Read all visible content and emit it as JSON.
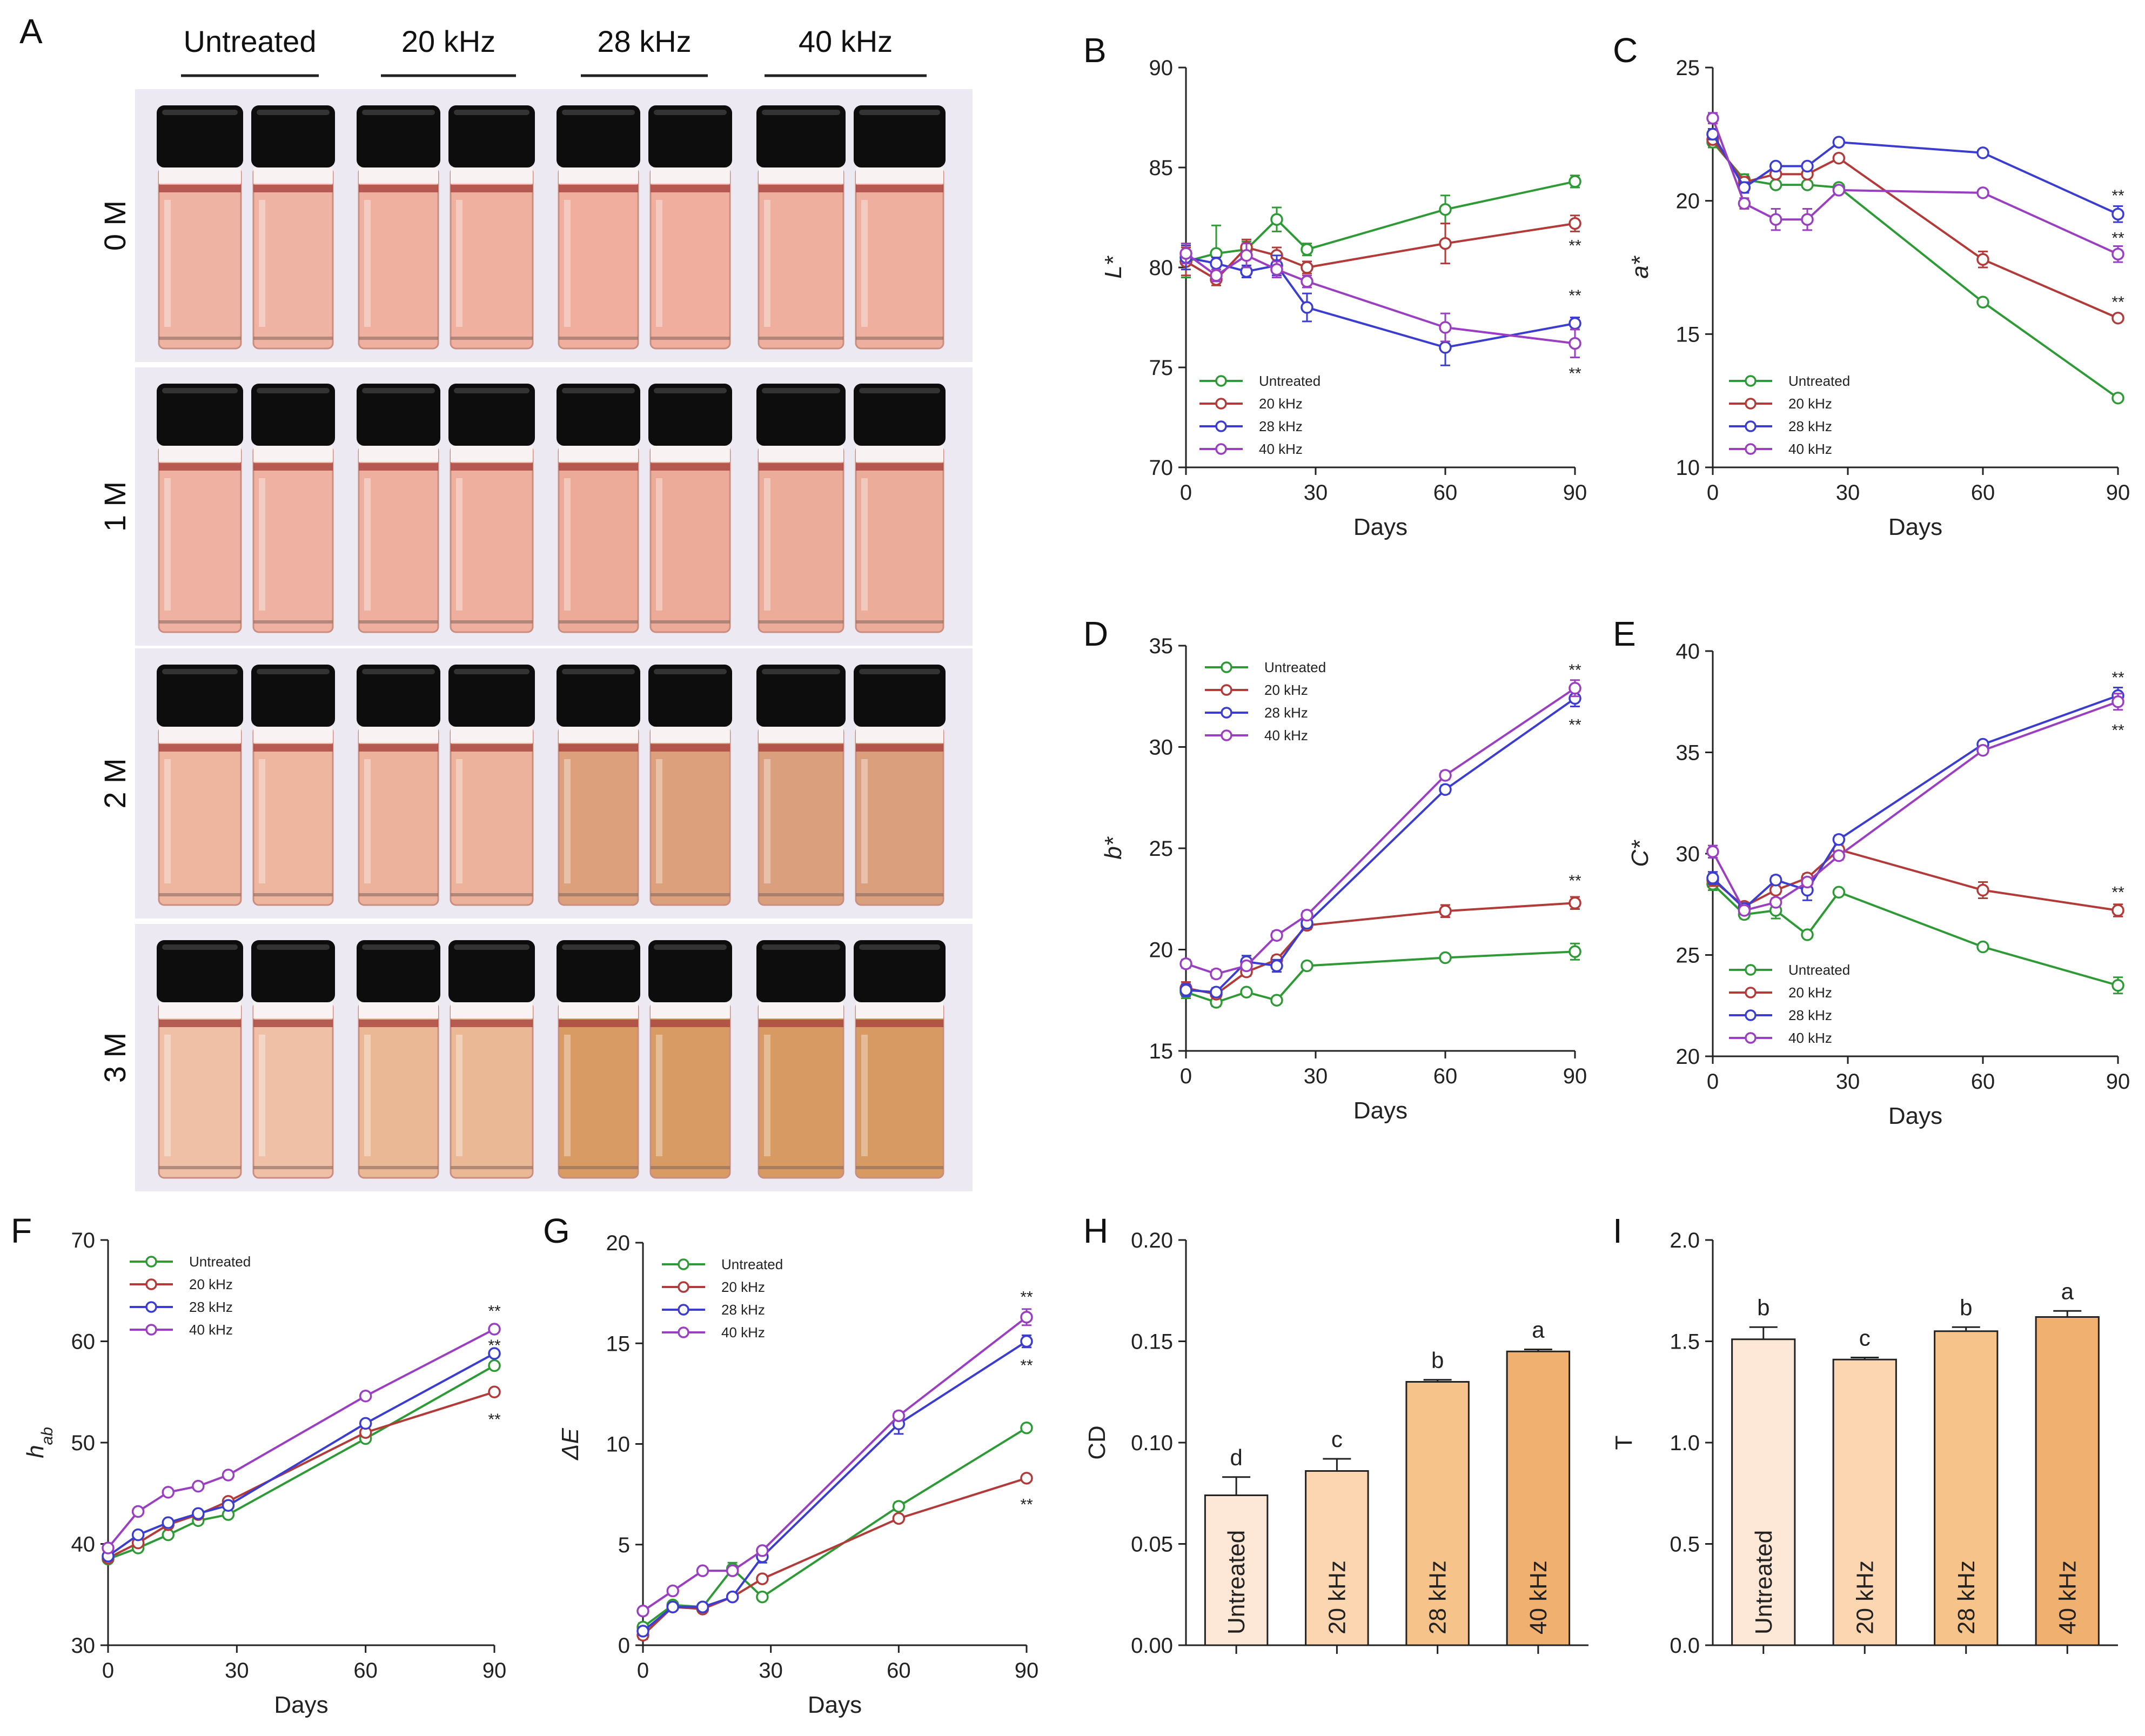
{
  "photo": {
    "label": "A",
    "columns": [
      "Untreated",
      "20 kHz",
      "28 kHz",
      "40 kHz"
    ],
    "rows": [
      "0 M",
      "1 M",
      "2 M",
      "3 M"
    ],
    "liquid_colors": [
      [
        "#efb3a3",
        "#efb0a0",
        "#efae9e",
        "#efaf9f"
      ],
      [
        "#efb2a2",
        "#eeaf9e",
        "#ecab98",
        "#ecac9a"
      ],
      [
        "#eeb59f",
        "#ecb29c",
        "#dca07c",
        "#daa07e"
      ],
      [
        "#efc0a6",
        "#ebb896",
        "#d79b63",
        "#d69a62"
      ]
    ]
  },
  "colors": {
    "Untreated": "#2e9a36",
    "20 kHz": "#b23a38",
    "28 kHz": "#3b3dd0",
    "40 kHz": "#9a3fc2"
  },
  "chart_data": [
    {
      "id": "B",
      "type": "line",
      "xlabel": "Days",
      "ylabel": "L*",
      "xlim": [
        0,
        90
      ],
      "ylim": [
        70,
        90
      ],
      "xticks": [
        0,
        30,
        60,
        90
      ],
      "yticks": [
        70,
        75,
        80,
        85,
        90
      ],
      "x": [
        0,
        7,
        14,
        21,
        28,
        60,
        90
      ],
      "series": [
        {
          "name": "Untreated",
          "values": [
            80.3,
            80.7,
            80.9,
            82.4,
            80.9,
            82.9,
            84.3
          ],
          "err": [
            0.8,
            1.4,
            0.4,
            0.6,
            0.3,
            0.7,
            0.3
          ]
        },
        {
          "name": "20 kHz",
          "values": [
            80.3,
            79.4,
            81.0,
            80.6,
            80.0,
            81.2,
            82.2
          ],
          "err": [
            0.7,
            0.3,
            0.4,
            0.4,
            0.3,
            1.0,
            0.4
          ]
        },
        {
          "name": "28 kHz",
          "values": [
            80.5,
            80.2,
            79.8,
            80.1,
            78.0,
            76.0,
            77.2
          ],
          "err": [
            0.6,
            0.3,
            0.3,
            0.5,
            0.7,
            0.9,
            0.3
          ]
        },
        {
          "name": "40 kHz",
          "values": [
            80.7,
            79.6,
            80.6,
            79.9,
            79.3,
            77.0,
            76.2
          ],
          "err": [
            0.5,
            0.3,
            0.6,
            0.4,
            0.3,
            0.7,
            0.7
          ]
        }
      ],
      "sig": [
        {
          "x": 90,
          "y": 81.1,
          "text": "**"
        },
        {
          "x": 90,
          "y": 78.6,
          "text": "**"
        },
        {
          "x": 90,
          "y": 74.7,
          "text": "**"
        }
      ],
      "legend_pos": "bottom-left",
      "legend": [
        "Untreated",
        "20 kHz",
        "28 kHz",
        "40 kHz"
      ]
    },
    {
      "id": "C",
      "type": "line",
      "xlabel": "Days",
      "ylabel": "a*",
      "xlim": [
        0,
        90
      ],
      "ylim": [
        10,
        25
      ],
      "xticks": [
        0,
        30,
        60,
        90
      ],
      "yticks": [
        10,
        15,
        20,
        25
      ],
      "x": [
        0,
        7,
        14,
        21,
        28,
        60,
        90
      ],
      "series": [
        {
          "name": "Untreated",
          "values": [
            22.2,
            20.8,
            20.6,
            20.6,
            20.5,
            16.2,
            12.6
          ],
          "err": [
            0.2,
            0.2,
            0.1,
            0.1,
            0.1,
            0.1,
            0.1
          ]
        },
        {
          "name": "20 kHz",
          "values": [
            22.3,
            20.7,
            21.0,
            21.0,
            21.6,
            17.8,
            15.6
          ],
          "err": [
            0.2,
            0.2,
            0.1,
            0.1,
            0.1,
            0.3,
            0.1
          ]
        },
        {
          "name": "28 kHz",
          "values": [
            22.5,
            20.5,
            21.3,
            21.3,
            22.2,
            21.8,
            19.5
          ],
          "err": [
            0.2,
            0.2,
            0.1,
            0.1,
            0.1,
            0.1,
            0.3
          ]
        },
        {
          "name": "40 kHz",
          "values": [
            23.1,
            19.9,
            19.3,
            19.3,
            20.4,
            20.3,
            18.0
          ],
          "err": [
            0.2,
            0.2,
            0.4,
            0.4,
            0.1,
            0.1,
            0.3
          ]
        }
      ],
      "sig": [
        {
          "x": 90,
          "y": 20.2,
          "text": "**"
        },
        {
          "x": 90,
          "y": 18.6,
          "text": "**"
        },
        {
          "x": 90,
          "y": 16.2,
          "text": "**"
        }
      ],
      "legend_pos": "bottom-left",
      "legend": [
        "Untreated",
        "20 kHz",
        "28 kHz",
        "40 kHz"
      ]
    },
    {
      "id": "D",
      "type": "line",
      "xlabel": "Days",
      "ylabel": "b*",
      "xlim": [
        0,
        90
      ],
      "ylim": [
        15,
        35
      ],
      "xticks": [
        0,
        30,
        60,
        90
      ],
      "yticks": [
        15,
        20,
        25,
        30,
        35
      ],
      "x": [
        0,
        7,
        14,
        21,
        28,
        60,
        90
      ],
      "series": [
        {
          "name": "Untreated",
          "values": [
            17.9,
            17.4,
            17.9,
            17.5,
            19.2,
            19.6,
            19.9
          ],
          "err": [
            0.3,
            0.2,
            0.1,
            0.1,
            0.1,
            0.1,
            0.4
          ]
        },
        {
          "name": "20 kHz",
          "values": [
            18.1,
            17.8,
            18.9,
            19.5,
            21.2,
            21.9,
            22.3
          ],
          "err": [
            0.3,
            0.2,
            0.2,
            0.2,
            0.2,
            0.3,
            0.3
          ]
        },
        {
          "name": "28 kHz",
          "values": [
            18.0,
            17.9,
            19.4,
            19.2,
            21.3,
            27.9,
            32.4
          ],
          "err": [
            0.3,
            0.2,
            0.3,
            0.3,
            0.2,
            0.2,
            0.4
          ]
        },
        {
          "name": "40 kHz",
          "values": [
            19.3,
            18.8,
            19.2,
            20.7,
            21.7,
            28.6,
            32.9
          ],
          "err": [
            0.2,
            0.2,
            0.2,
            0.2,
            0.2,
            0.2,
            0.4
          ]
        }
      ],
      "sig": [
        {
          "x": 90,
          "y": 33.8,
          "text": "**"
        },
        {
          "x": 90,
          "y": 31.1,
          "text": "**"
        },
        {
          "x": 90,
          "y": 23.4,
          "text": "**"
        }
      ],
      "legend_pos": "top-left",
      "legend": [
        "Untreated",
        "20 kHz",
        "28 kHz",
        "40 kHz"
      ]
    },
    {
      "id": "E",
      "type": "line",
      "xlabel": "Days",
      "ylabel": "C*",
      "xlim": [
        0,
        90
      ],
      "ylim": [
        20,
        40
      ],
      "xticks": [
        0,
        30,
        60,
        90
      ],
      "yticks": [
        20,
        25,
        30,
        35,
        40
      ],
      "x": [
        0,
        7,
        14,
        21,
        28,
        60,
        90
      ],
      "series": [
        {
          "name": "Untreated",
          "values": [
            28.5,
            27.0,
            27.2,
            26.0,
            28.1,
            25.4,
            23.5
          ],
          "err": [
            0.3,
            0.2,
            0.4,
            0.1,
            0.1,
            0.1,
            0.4
          ]
        },
        {
          "name": "20 kHz",
          "values": [
            28.7,
            27.4,
            28.2,
            28.8,
            30.2,
            28.2,
            27.2
          ],
          "err": [
            0.3,
            0.2,
            0.2,
            0.2,
            0.2,
            0.4,
            0.3
          ]
        },
        {
          "name": "28 kHz",
          "values": [
            28.8,
            27.3,
            28.7,
            28.2,
            30.7,
            35.4,
            37.8
          ],
          "err": [
            0.3,
            0.2,
            0.2,
            0.5,
            0.2,
            0.1,
            0.4
          ]
        },
        {
          "name": "40 kHz",
          "values": [
            30.1,
            27.2,
            27.6,
            28.6,
            29.9,
            35.1,
            37.5
          ],
          "err": [
            0.3,
            0.2,
            0.2,
            0.2,
            0.2,
            0.1,
            0.4
          ]
        }
      ],
      "sig": [
        {
          "x": 90,
          "y": 38.7,
          "text": "**"
        },
        {
          "x": 90,
          "y": 36.1,
          "text": "**"
        },
        {
          "x": 90,
          "y": 28.1,
          "text": "**"
        }
      ],
      "legend_pos": "bottom-left",
      "legend": [
        "Untreated",
        "20 kHz",
        "28 kHz",
        "40 kHz"
      ]
    },
    {
      "id": "F",
      "type": "line",
      "xlabel": "Days",
      "ylabel": "hab",
      "xlim": [
        0,
        90
      ],
      "ylim": [
        30,
        70
      ],
      "xticks": [
        0,
        30,
        60,
        90
      ],
      "yticks": [
        30,
        40,
        50,
        60,
        70
      ],
      "x": [
        0,
        7,
        14,
        21,
        28,
        60,
        90
      ],
      "series": [
        {
          "name": "Untreated",
          "values": [
            38.5,
            39.6,
            40.9,
            42.3,
            42.9,
            50.4,
            57.6
          ],
          "err": [
            0.3,
            0.2,
            0.2,
            0.2,
            0.2,
            0.2,
            0.3
          ]
        },
        {
          "name": "20 kHz",
          "values": [
            38.6,
            40.1,
            41.9,
            42.9,
            44.2,
            51.0,
            55.0
          ],
          "err": [
            0.3,
            0.2,
            0.2,
            0.2,
            0.2,
            0.2,
            0.2
          ]
        },
        {
          "name": "28 kHz",
          "values": [
            38.8,
            40.9,
            42.1,
            43.0,
            43.8,
            51.9,
            58.8
          ],
          "err": [
            0.3,
            0.2,
            0.2,
            0.2,
            0.2,
            0.2,
            0.3
          ]
        },
        {
          "name": "40 kHz",
          "values": [
            39.6,
            43.2,
            45.1,
            45.7,
            46.8,
            54.6,
            61.2
          ],
          "err": [
            0.2,
            0.2,
            0.2,
            0.2,
            0.2,
            0.2,
            0.2
          ]
        }
      ],
      "sig": [
        {
          "x": 90,
          "y": 63.0,
          "text": "**"
        },
        {
          "x": 90,
          "y": 59.6,
          "text": "**"
        },
        {
          "x": 90,
          "y": 52.3,
          "text": "**"
        }
      ],
      "legend_pos": "top-left",
      "legend": [
        "Untreated",
        "20 kHz",
        "28 kHz",
        "40 kHz"
      ]
    },
    {
      "id": "G",
      "type": "line",
      "xlabel": "Days",
      "ylabel": "ΔE",
      "xlim": [
        0,
        90
      ],
      "ylim": [
        0,
        20
      ],
      "xticks": [
        0,
        30,
        60,
        90
      ],
      "yticks": [
        0,
        5,
        10,
        15,
        20
      ],
      "x": [
        0,
        7,
        14,
        21,
        28,
        60,
        90
      ],
      "series": [
        {
          "name": "Untreated",
          "values": [
            0.9,
            2.0,
            1.9,
            3.8,
            2.4,
            6.9,
            10.8
          ],
          "err": [
            0.2,
            0.1,
            0.1,
            0.3,
            0.1,
            0.2,
            0.1
          ]
        },
        {
          "name": "20 kHz",
          "values": [
            0.5,
            1.9,
            1.8,
            2.4,
            3.3,
            6.3,
            8.3
          ],
          "err": [
            0.2,
            0.1,
            0.1,
            0.1,
            0.1,
            0.1,
            0.1
          ]
        },
        {
          "name": "28 kHz",
          "values": [
            0.7,
            1.9,
            1.9,
            2.4,
            4.4,
            11.0,
            15.1
          ],
          "err": [
            0.2,
            0.1,
            0.1,
            0.1,
            0.3,
            0.5,
            0.3
          ]
        },
        {
          "name": "40 kHz",
          "values": [
            1.7,
            2.7,
            3.7,
            3.7,
            4.7,
            11.4,
            16.3
          ],
          "err": [
            0.1,
            0.1,
            0.1,
            0.1,
            0.1,
            0.2,
            0.4
          ]
        }
      ],
      "sig": [
        {
          "x": 90,
          "y": 17.3,
          "text": "**"
        },
        {
          "x": 90,
          "y": 13.9,
          "text": "**"
        },
        {
          "x": 90,
          "y": 7.0,
          "text": "**"
        }
      ],
      "legend_pos": "top-left",
      "legend": [
        "Untreated",
        "20 kHz",
        "28 kHz",
        "40 kHz"
      ]
    },
    {
      "id": "H",
      "type": "bar",
      "ylabel": "CD",
      "ylim": [
        0,
        0.2
      ],
      "yticks": [
        "0.00",
        "0.05",
        "0.10",
        "0.15",
        "0.20"
      ],
      "ytick_values": [
        0,
        0.05,
        0.1,
        0.15,
        0.2
      ],
      "categories": [
        "Untreated",
        "20 kHz",
        "28 kHz",
        "40 kHz"
      ],
      "values": [
        0.074,
        0.086,
        0.13,
        0.145
      ],
      "err": [
        0.009,
        0.006,
        0.001,
        0.001
      ],
      "letters": [
        "d",
        "c",
        "b",
        "a"
      ],
      "bar_colors": [
        "#fde7d6",
        "#fbd6b0",
        "#f6c48a",
        "#f0b070"
      ]
    },
    {
      "id": "I",
      "type": "bar",
      "ylabel": "T",
      "ylim": [
        0,
        2.0
      ],
      "yticks": [
        "0.0",
        "0.5",
        "1.0",
        "1.5",
        "2.0"
      ],
      "ytick_values": [
        0,
        0.5,
        1.0,
        1.5,
        2.0
      ],
      "categories": [
        "Untreated",
        "20 kHz",
        "28 kHz",
        "40 kHz"
      ],
      "values": [
        1.51,
        1.41,
        1.55,
        1.62
      ],
      "err": [
        0.06,
        0.01,
        0.02,
        0.03
      ],
      "letters": [
        "b",
        "c",
        "b",
        "a"
      ],
      "bar_colors": [
        "#fde7d6",
        "#fbd6b0",
        "#f6c48a",
        "#f0b070"
      ]
    }
  ]
}
